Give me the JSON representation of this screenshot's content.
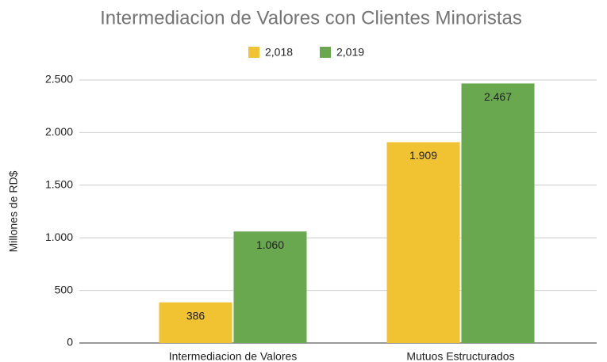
{
  "chart_data": {
    "type": "bar",
    "title": "Intermediacion de Valores con Clientes Minoristas",
    "y_label": "Millones de RD$",
    "categories": [
      "Intermediacion de Valores",
      "Mutuos Estructurados"
    ],
    "series": [
      {
        "name": "2,018",
        "color": "#f1c232",
        "values": [
          386,
          1909
        ],
        "value_labels": [
          "386",
          "1.909"
        ]
      },
      {
        "name": "2,019",
        "color": "#6aa84f",
        "values": [
          1060,
          2467
        ],
        "value_labels": [
          "1.060",
          "2.467"
        ]
      }
    ],
    "ylim": [
      0,
      2500
    ],
    "yticks": [
      0,
      500,
      {
        "value": 1000,
        "label": "1.000"
      },
      {
        "value": 1500,
        "label": "1.500"
      },
      {
        "value": 2000,
        "label": "2.000"
      },
      {
        "value": 2500,
        "label": "2.500"
      }
    ],
    "grid": true,
    "legend": "top"
  }
}
